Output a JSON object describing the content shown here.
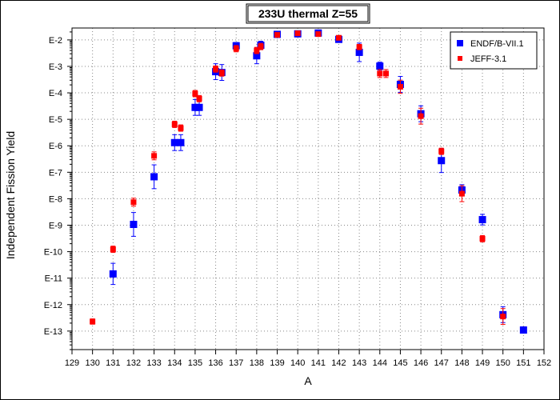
{
  "chart_data": {
    "type": "scatter",
    "title": "233U thermal Z=55",
    "xlabel": "A",
    "ylabel": "Independent Fission Yield",
    "xlim": [
      129,
      152
    ],
    "x_ticks": [
      "129",
      "130",
      "131",
      "132",
      "133",
      "134",
      "135",
      "136",
      "137",
      "138",
      "139",
      "140",
      "141",
      "142",
      "143",
      "144",
      "145",
      "146",
      "147",
      "148",
      "149",
      "150",
      "151",
      "152"
    ],
    "y_scale": "log",
    "ylim_log10": [
      -13.7,
      -1.55
    ],
    "y_ticks": [
      {
        "label": "E-2",
        "exp": -2
      },
      {
        "label": "E-3",
        "exp": -3
      },
      {
        "label": "E-4",
        "exp": -4
      },
      {
        "label": "E-5",
        "exp": -5
      },
      {
        "label": "E-6",
        "exp": -6
      },
      {
        "label": "E-7",
        "exp": -7
      },
      {
        "label": "E-8",
        "exp": -8
      },
      {
        "label": "E-9",
        "exp": -9
      },
      {
        "label": "E-10",
        "exp": -10
      },
      {
        "label": "E-11",
        "exp": -11
      },
      {
        "label": "E-12",
        "exp": -12
      },
      {
        "label": "E-13",
        "exp": -13
      }
    ],
    "grid": true,
    "legend_position": "top-right",
    "series": [
      {
        "name": "ENDF/B-VII.1",
        "color": "#0000ff",
        "marker": "square",
        "points": [
          {
            "x": 131,
            "log10y": -10.84,
            "err": 0.4
          },
          {
            "x": 132,
            "log10y": -8.97,
            "err": 0.45
          },
          {
            "x": 133,
            "log10y": -7.17,
            "err": 0.45
          },
          {
            "x": 134,
            "log10y": -5.88,
            "err": 0.3
          },
          {
            "x": 134.3,
            "log10y": -5.88,
            "err": 0.3
          },
          {
            "x": 135,
            "log10y": -4.55,
            "err": 0.3
          },
          {
            "x": 135.2,
            "log10y": -4.55,
            "err": 0.3
          },
          {
            "x": 136,
            "log10y": -3.2,
            "err": 0.3
          },
          {
            "x": 136.3,
            "log10y": -3.23,
            "err": 0.3
          },
          {
            "x": 137,
            "log10y": -2.22,
            "err": 0.12
          },
          {
            "x": 138,
            "log10y": -2.6,
            "err": 0.3
          },
          {
            "x": 138.2,
            "log10y": -2.2,
            "err": 0.15
          },
          {
            "x": 139,
            "log10y": -1.79,
            "err": 0.08
          },
          {
            "x": 140,
            "log10y": -1.77,
            "err": 0.08
          },
          {
            "x": 141,
            "log10y": -1.74,
            "err": 0.05
          },
          {
            "x": 142,
            "log10y": -1.98,
            "err": 0.08
          },
          {
            "x": 143,
            "log10y": -2.47,
            "err": 0.35
          },
          {
            "x": 144,
            "log10y": -2.99,
            "err": 0.15
          },
          {
            "x": 145,
            "log10y": -3.68,
            "err": 0.3
          },
          {
            "x": 146,
            "log10y": -4.79,
            "err": 0.3
          },
          {
            "x": 147,
            "log10y": -6.56,
            "err": 0.45
          },
          {
            "x": 148,
            "log10y": -7.67,
            "err": 0.2
          },
          {
            "x": 149,
            "log10y": -8.79,
            "err": 0.2
          },
          {
            "x": 150,
            "log10y": -12.38,
            "err": 0.3
          },
          {
            "x": 151,
            "log10y": -12.96,
            "err": 0.12
          }
        ]
      },
      {
        "name": "JEFF-3.1",
        "color": "#ff0000",
        "marker": "square",
        "points": [
          {
            "x": 130,
            "log10y": -12.64,
            "err": 0.1
          },
          {
            "x": 131,
            "log10y": -9.91,
            "err": 0.12
          },
          {
            "x": 132,
            "log10y": -8.13,
            "err": 0.15
          },
          {
            "x": 133,
            "log10y": -6.38,
            "err": 0.15
          },
          {
            "x": 134,
            "log10y": -5.19,
            "err": 0.12
          },
          {
            "x": 134.3,
            "log10y": -5.33,
            "err": 0.12
          },
          {
            "x": 135,
            "log10y": -4.03,
            "err": 0.12
          },
          {
            "x": 135.2,
            "log10y": -4.22,
            "err": 0.12
          },
          {
            "x": 136,
            "log10y": -3.1,
            "err": 0.12
          },
          {
            "x": 136.3,
            "log10y": -3.25,
            "err": 0.12
          },
          {
            "x": 137,
            "log10y": -2.33,
            "err": 0.12
          },
          {
            "x": 138,
            "log10y": -2.4,
            "err": 0.12
          },
          {
            "x": 138.2,
            "log10y": -2.25,
            "err": 0.12
          },
          {
            "x": 139,
            "log10y": -1.81,
            "err": 0.06
          },
          {
            "x": 140,
            "log10y": -1.75,
            "err": 0.06
          },
          {
            "x": 141,
            "log10y": -1.78,
            "err": 0.06
          },
          {
            "x": 142,
            "log10y": -1.92,
            "err": 0.06
          },
          {
            "x": 143,
            "log10y": -2.27,
            "err": 0.1
          },
          {
            "x": 144,
            "log10y": -3.27,
            "err": 0.15
          },
          {
            "x": 144.3,
            "log10y": -3.27,
            "err": 0.15
          },
          {
            "x": 145,
            "log10y": -3.77,
            "err": 0.25
          },
          {
            "x": 146,
            "log10y": -4.88,
            "err": 0.3
          },
          {
            "x": 147,
            "log10y": -6.21,
            "err": 0.12
          },
          {
            "x": 148,
            "log10y": -7.81,
            "err": 0.3
          },
          {
            "x": 149,
            "log10y": -9.51,
            "err": 0.12
          },
          {
            "x": 150,
            "log10y": -12.45,
            "err": 0.3
          }
        ]
      }
    ]
  }
}
